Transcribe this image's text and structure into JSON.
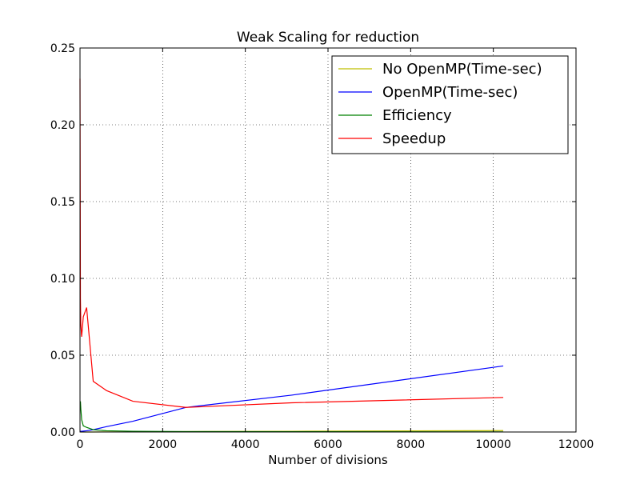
{
  "chart_data": {
    "type": "line",
    "title": "Weak Scaling for reduction",
    "xlabel": "Number of divisions",
    "ylabel": "",
    "xlim": [
      0,
      12000
    ],
    "ylim": [
      0,
      0.25
    ],
    "xticks": [
      "0",
      "2000",
      "4000",
      "6000",
      "8000",
      "10000",
      "12000"
    ],
    "yticks": [
      "0.00",
      "0.05",
      "0.10",
      "0.15",
      "0.20",
      "0.25"
    ],
    "grid": true,
    "legend_position": "top-right",
    "series": [
      {
        "name": "No OpenMP(Time-sec)",
        "color": "#bfbf00",
        "x": [
          10,
          20,
          40,
          80,
          160,
          320,
          640,
          1280,
          2560,
          5120,
          10240
        ],
        "y": [
          0.0,
          0.0,
          0.0,
          0.0,
          0.0,
          0.0,
          0.0001,
          0.0001,
          0.0003,
          0.0005,
          0.0009
        ]
      },
      {
        "name": "OpenMP(Time-sec)",
        "color": "#0000ff",
        "x": [
          10,
          20,
          40,
          80,
          160,
          320,
          640,
          1280,
          2560,
          5120,
          10240
        ],
        "y": [
          0.0005,
          0.0005,
          0.0005,
          0.0006,
          0.0008,
          0.0015,
          0.0035,
          0.007,
          0.016,
          0.024,
          0.043
        ]
      },
      {
        "name": "Efficiency",
        "color": "#008000",
        "x": [
          10,
          20,
          40,
          80,
          160,
          320,
          640,
          1280,
          2560,
          5120,
          10240
        ],
        "y": [
          0.02,
          0.015,
          0.008,
          0.004,
          0.003,
          0.0015,
          0.0008,
          0.0005,
          0.0003,
          0.0002,
          0.0001
        ]
      },
      {
        "name": "Speedup",
        "color": "#ff0000",
        "x": [
          0,
          10,
          20,
          40,
          80,
          160,
          320,
          640,
          1280,
          2560,
          5120,
          10240
        ],
        "y": [
          0.23,
          0.087,
          0.07,
          0.062,
          0.075,
          0.081,
          0.033,
          0.027,
          0.02,
          0.016,
          0.019,
          0.0225
        ]
      }
    ]
  }
}
